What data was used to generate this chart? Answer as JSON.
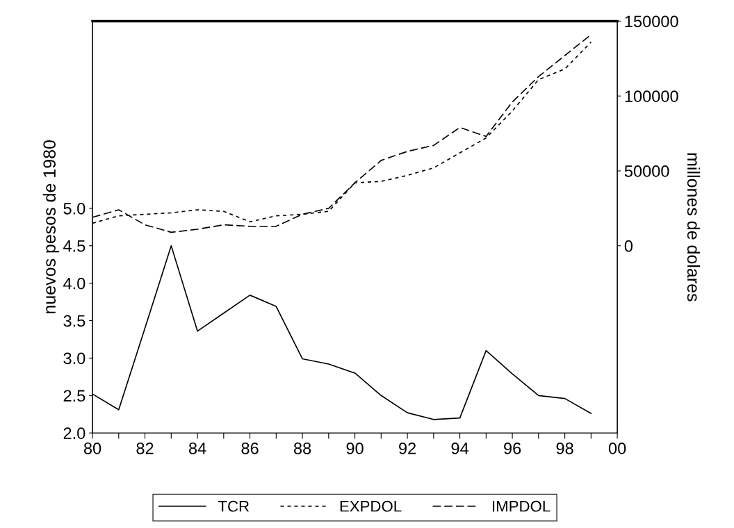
{
  "chart_data": {
    "type": "line",
    "ylabel": "nuevos pesos de 1980",
    "y2label": "millones de dolares",
    "x": [
      1980,
      1981,
      1982,
      1983,
      1984,
      1985,
      1986,
      1987,
      1988,
      1989,
      1990,
      1991,
      1992,
      1993,
      1994,
      1995,
      1996,
      1997,
      1998,
      1999
    ],
    "xlim": [
      1980,
      2000
    ],
    "xticks": [
      {
        "value": 1980,
        "label": "80"
      },
      {
        "value": 1981,
        "label": null
      },
      {
        "value": 1982,
        "label": "82"
      },
      {
        "value": 1983,
        "label": null
      },
      {
        "value": 1984,
        "label": "84"
      },
      {
        "value": 1985,
        "label": null
      },
      {
        "value": 1986,
        "label": "86"
      },
      {
        "value": 1987,
        "label": null
      },
      {
        "value": 1988,
        "label": "88"
      },
      {
        "value": 1989,
        "label": null
      },
      {
        "value": 1990,
        "label": "90"
      },
      {
        "value": 1991,
        "label": null
      },
      {
        "value": 1992,
        "label": "92"
      },
      {
        "value": 1993,
        "label": null
      },
      {
        "value": 1994,
        "label": "94"
      },
      {
        "value": 1995,
        "label": null
      },
      {
        "value": 1996,
        "label": "96"
      },
      {
        "value": 1997,
        "label": null
      },
      {
        "value": 1998,
        "label": "98"
      },
      {
        "value": 1999,
        "label": null
      },
      {
        "value": 2000,
        "label": "00"
      }
    ],
    "ylim": [
      2.0,
      7.5
    ],
    "yticks": [
      {
        "value": 2.0,
        "label": "2.0"
      },
      {
        "value": 2.5,
        "label": "2.5"
      },
      {
        "value": 3.0,
        "label": "3.0"
      },
      {
        "value": 3.5,
        "label": "3.5"
      },
      {
        "value": 4.0,
        "label": "4.0"
      },
      {
        "value": 4.5,
        "label": "4.5"
      },
      {
        "value": 5.0,
        "label": "5.0"
      }
    ],
    "y2lim": [
      -125000,
      150000
    ],
    "y2ticks": [
      0,
      50000,
      100000,
      150000
    ],
    "grid": false,
    "legend": "bottom",
    "marker": "none",
    "series": [
      {
        "name": "TCR",
        "color": "#000000",
        "line_style": "solid",
        "values": [
          2.52,
          2.31,
          3.4,
          4.5,
          3.36,
          3.6,
          3.84,
          3.69,
          2.99,
          2.92,
          2.8,
          2.5,
          2.27,
          2.18,
          2.2,
          3.1,
          2.79,
          2.5,
          2.46,
          2.26
        ]
      },
      {
        "name": "EXPDOL",
        "color": "#000000",
        "line_style": "dotted",
        "axis": "y2",
        "values": [
          15000,
          20000,
          21000,
          22000,
          24000,
          23000,
          16000,
          20000,
          21000,
          23000,
          42000,
          43000,
          47000,
          52000,
          62000,
          72000,
          90000,
          111000,
          118000,
          136000
        ]
      },
      {
        "name": "IMPDOL",
        "color": "#000000",
        "line_style": "dashed",
        "axis": "y2",
        "values": [
          19000,
          24000,
          14000,
          9000,
          11000,
          14000,
          13000,
          13000,
          21000,
          25000,
          42000,
          57000,
          63000,
          67000,
          79000,
          73000,
          96000,
          113000,
          127000,
          141000
        ]
      }
    ]
  }
}
